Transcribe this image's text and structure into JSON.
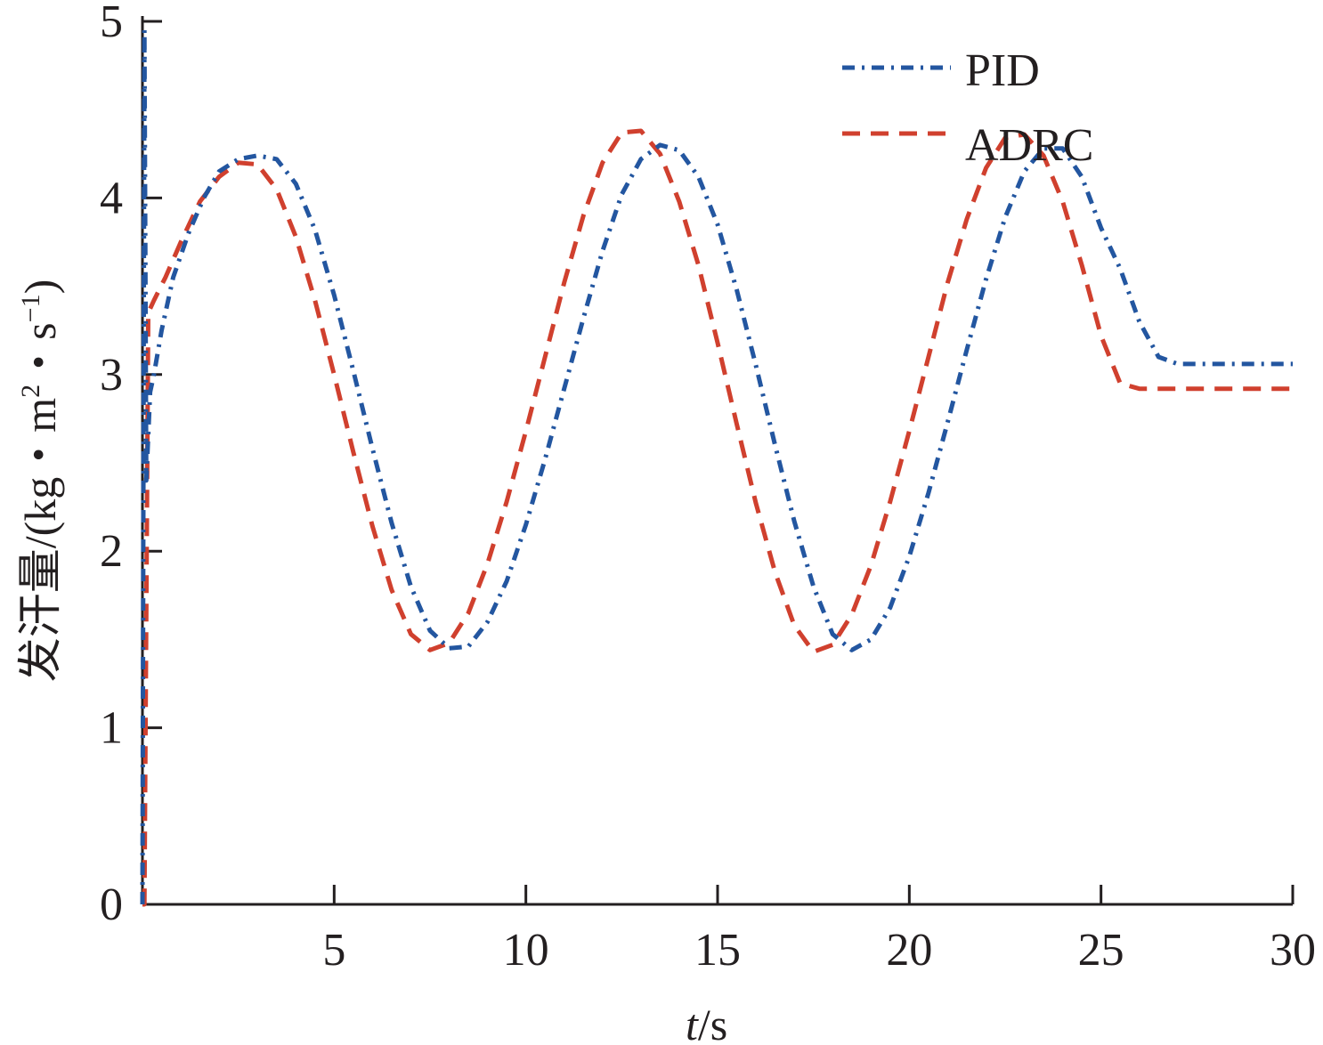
{
  "chart_data": {
    "type": "line",
    "xlabel_var": "t",
    "xlabel_unit": "/s",
    "ylabel_main": "发汗量/(kg・m",
    "ylabel_sup1": "2",
    "ylabel_mid": "・s",
    "ylabel_sup2": "−1",
    "ylabel_end": ")",
    "xlim": [
      0,
      30
    ],
    "ylim": [
      0,
      5
    ],
    "x_ticks": [
      5,
      10,
      15,
      20,
      25,
      30
    ],
    "y_ticks": [
      0,
      1,
      2,
      3,
      4,
      5
    ],
    "grid": false,
    "legend_position": "top-right",
    "series": [
      {
        "name": "PID",
        "color": "#2356a0",
        "dash": "dash-dot",
        "x": [
          0,
          0.05,
          0.1,
          0.2,
          0.3,
          0.5,
          0.8,
          1.2,
          1.6,
          2.0,
          2.5,
          3.0,
          3.5,
          4.0,
          4.5,
          5.0,
          5.5,
          6.0,
          6.5,
          7.0,
          7.5,
          8.0,
          8.5,
          9.0,
          9.5,
          10.0,
          10.5,
          11.0,
          11.5,
          12.0,
          12.5,
          13.0,
          13.5,
          14.0,
          14.5,
          15.0,
          15.5,
          16.0,
          16.5,
          17.0,
          17.5,
          18.0,
          18.5,
          19.0,
          19.5,
          20.0,
          20.5,
          21.0,
          21.5,
          22.0,
          22.5,
          23.0,
          23.5,
          24.0,
          24.5,
          25.0,
          25.5,
          26.0,
          26.5,
          27.0,
          27.5,
          28.0,
          28.5,
          29.0,
          29.5,
          30.0
        ],
        "y": [
          0,
          4.95,
          2.4,
          2.9,
          3.0,
          3.25,
          3.55,
          3.8,
          4.0,
          4.15,
          4.22,
          4.24,
          4.22,
          4.08,
          3.82,
          3.45,
          3.02,
          2.58,
          2.16,
          1.8,
          1.55,
          1.45,
          1.46,
          1.6,
          1.83,
          2.15,
          2.52,
          2.92,
          3.32,
          3.7,
          4.02,
          4.22,
          4.3,
          4.27,
          4.12,
          3.85,
          3.48,
          3.05,
          2.6,
          2.17,
          1.8,
          1.53,
          1.44,
          1.5,
          1.68,
          1.97,
          2.33,
          2.73,
          3.14,
          3.54,
          3.89,
          4.15,
          4.28,
          4.28,
          4.12,
          3.83,
          3.6,
          3.3,
          3.1,
          3.06,
          3.06,
          3.06,
          3.06,
          3.06,
          3.06,
          3.06
        ]
      },
      {
        "name": "ADRC",
        "color": "#d0402e",
        "dash": "dash",
        "x": [
          0,
          0.05,
          0.15,
          0.3,
          0.6,
          1.0,
          1.5,
          2.0,
          2.5,
          3.0,
          3.5,
          4.0,
          4.5,
          5.0,
          5.5,
          6.0,
          6.5,
          7.0,
          7.5,
          8.0,
          8.5,
          9.0,
          9.5,
          10.0,
          10.5,
          11.0,
          11.5,
          12.0,
          12.5,
          13.0,
          13.5,
          14.0,
          14.5,
          15.0,
          15.5,
          16.0,
          16.5,
          17.0,
          17.5,
          18.0,
          18.5,
          19.0,
          19.5,
          20.0,
          20.5,
          21.0,
          21.5,
          22.0,
          22.5,
          23.0,
          23.5,
          24.0,
          24.5,
          25.0,
          25.5,
          26.0,
          26.5,
          27.0,
          27.5,
          28.0,
          28.5,
          29.0,
          29.5,
          30.0
        ],
        "y": [
          0,
          0,
          3.35,
          3.42,
          3.55,
          3.75,
          3.98,
          4.12,
          4.2,
          4.19,
          4.05,
          3.78,
          3.42,
          3.0,
          2.56,
          2.14,
          1.78,
          1.53,
          1.44,
          1.48,
          1.65,
          1.93,
          2.28,
          2.68,
          3.1,
          3.52,
          3.9,
          4.2,
          4.37,
          4.38,
          4.25,
          3.98,
          3.62,
          3.18,
          2.72,
          2.27,
          1.88,
          1.58,
          1.43,
          1.47,
          1.64,
          1.92,
          2.28,
          2.68,
          3.1,
          3.52,
          3.88,
          4.17,
          4.34,
          4.36,
          4.24,
          3.98,
          3.62,
          3.22,
          2.95,
          2.92,
          2.92,
          2.92,
          2.92,
          2.92,
          2.92,
          2.92,
          2.92,
          2.92
        ]
      }
    ]
  }
}
